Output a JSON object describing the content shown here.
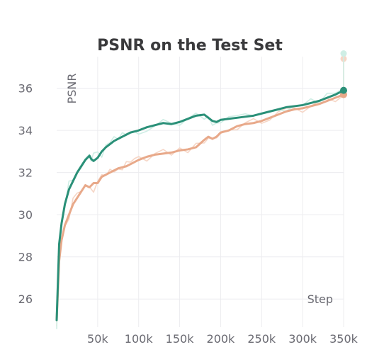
{
  "chart_data": {
    "type": "line",
    "title": "PSNR on the Test Set",
    "xlabel": "Step",
    "ylabel": "PSNR",
    "xlim": [
      0,
      350000
    ],
    "ylim": [
      25,
      37.5
    ],
    "x_ticks": [
      50000,
      100000,
      150000,
      200000,
      250000,
      300000,
      350000
    ],
    "x_tick_labels": [
      "50k",
      "100k",
      "150k",
      "200k",
      "250k",
      "300k",
      "350k"
    ],
    "y_ticks": [
      26,
      28,
      30,
      32,
      34,
      36
    ],
    "y_tick_labels": [
      "26",
      "28",
      "30",
      "32",
      "34",
      "36"
    ],
    "grid": true,
    "legend": "none",
    "series": [
      {
        "color": "#e8a98a",
        "raw_color": "#f6d6c6",
        "x": [
          0,
          3000,
          6000,
          10000,
          15000,
          20000,
          25000,
          30000,
          35000,
          40000,
          45000,
          50000,
          55000,
          60000,
          65000,
          70000,
          75000,
          80000,
          85000,
          90000,
          95000,
          100000,
          110000,
          120000,
          130000,
          140000,
          150000,
          160000,
          170000,
          180000,
          185000,
          190000,
          195000,
          200000,
          210000,
          220000,
          230000,
          240000,
          250000,
          260000,
          270000,
          280000,
          290000,
          300000,
          310000,
          320000,
          330000,
          340000,
          350000
        ],
        "values": [
          25.0,
          27.8,
          28.8,
          29.5,
          30.0,
          30.5,
          30.8,
          31.1,
          31.4,
          31.3,
          31.5,
          31.5,
          31.8,
          31.9,
          32.0,
          32.1,
          32.2,
          32.25,
          32.3,
          32.4,
          32.5,
          32.6,
          32.75,
          32.85,
          32.9,
          32.95,
          33.05,
          33.1,
          33.2,
          33.55,
          33.7,
          33.6,
          33.7,
          33.9,
          34.0,
          34.2,
          34.3,
          34.35,
          34.45,
          34.6,
          34.75,
          34.9,
          35.0,
          35.05,
          35.15,
          35.25,
          35.4,
          35.55,
          35.7
        ],
        "end_value_raw": 37.4
      },
      {
        "color": "#2a9078",
        "raw_color": "#cfeee5",
        "x": [
          0,
          3000,
          6000,
          10000,
          15000,
          20000,
          25000,
          30000,
          35000,
          40000,
          42000,
          45000,
          50000,
          55000,
          60000,
          65000,
          70000,
          75000,
          80000,
          85000,
          90000,
          95000,
          100000,
          110000,
          120000,
          130000,
          140000,
          150000,
          160000,
          170000,
          180000,
          185000,
          190000,
          195000,
          200000,
          210000,
          220000,
          230000,
          240000,
          250000,
          260000,
          270000,
          280000,
          290000,
          300000,
          310000,
          320000,
          330000,
          340000,
          350000
        ],
        "values": [
          25.0,
          28.6,
          29.6,
          30.5,
          31.2,
          31.6,
          32.0,
          32.3,
          32.6,
          32.8,
          32.65,
          32.55,
          32.7,
          33.0,
          33.2,
          33.35,
          33.5,
          33.6,
          33.7,
          33.8,
          33.9,
          33.95,
          34.0,
          34.15,
          34.25,
          34.35,
          34.3,
          34.4,
          34.55,
          34.7,
          34.75,
          34.6,
          34.45,
          34.4,
          34.5,
          34.55,
          34.6,
          34.65,
          34.7,
          34.8,
          34.9,
          35.0,
          35.1,
          35.15,
          35.2,
          35.3,
          35.4,
          35.55,
          35.7,
          35.9
        ],
        "end_value_raw": 37.65
      }
    ]
  }
}
